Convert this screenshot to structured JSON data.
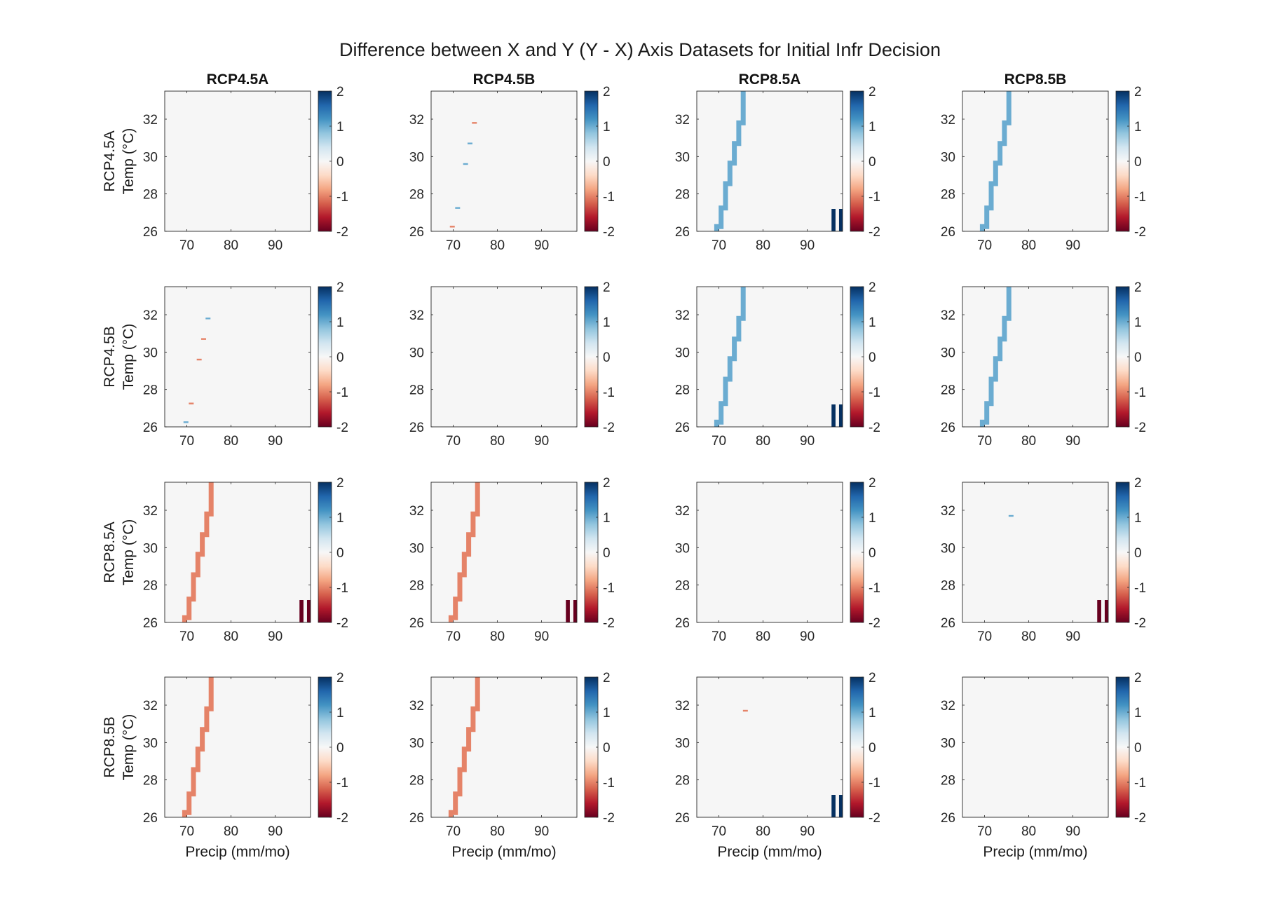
{
  "figure": {
    "title": "Difference between X and Y (Y - X) Axis Datasets for Initial Infr Decision",
    "columns": [
      "RCP4.5A",
      "RCP4.5B",
      "RCP8.5A",
      "RCP8.5B"
    ],
    "rows": [
      "RCP4.5A",
      "RCP4.5B",
      "RCP8.5A",
      "RCP8.5B"
    ],
    "ylabel": "Temp (°C)",
    "xlabel": "Precip (mm/mo)"
  },
  "chart_data": {
    "type": "heatmap",
    "xlim": [
      65,
      98
    ],
    "ylim": [
      26,
      33.5
    ],
    "xticks": [
      70,
      80,
      90
    ],
    "yticks": [
      26,
      28,
      30,
      32
    ],
    "clim": [
      -2,
      2
    ],
    "colorbar_ticks": [
      2,
      1,
      0,
      -1,
      -2
    ],
    "colormap": [
      "#67001f",
      "#b2182b",
      "#d6604d",
      "#f4a582",
      "#fddbc7",
      "#f7f7f7",
      "#d1e5f0",
      "#92c5de",
      "#4393c3",
      "#2166ac",
      "#053061"
    ],
    "background_color": "#f6f6f6",
    "staircase_path": [
      [
        69.5,
        26
      ],
      [
        69.5,
        26.25
      ],
      [
        70.5,
        26.25
      ],
      [
        70.5,
        27.25
      ],
      [
        71.5,
        27.25
      ],
      [
        71.5,
        28.55
      ],
      [
        72.5,
        28.55
      ],
      [
        72.5,
        29.65
      ],
      [
        73.5,
        29.65
      ],
      [
        73.5,
        30.7
      ],
      [
        74.5,
        30.7
      ],
      [
        74.5,
        31.8
      ],
      [
        75.5,
        31.8
      ],
      [
        75.5,
        33.5
      ]
    ],
    "subplots": [
      {
        "row": "RCP4.5A",
        "col": "RCP4.5A",
        "cells": []
      },
      {
        "row": "RCP4.5A",
        "col": "RCP4.5B",
        "cells": [
          {
            "x": 74.8,
            "y": 31.8,
            "value": -1
          },
          {
            "x": 73.8,
            "y": 30.7,
            "value": 1
          },
          {
            "x": 72.8,
            "y": 29.6,
            "value": 1
          },
          {
            "x": 71.0,
            "y": 27.25,
            "value": 1
          },
          {
            "x": 69.8,
            "y": 26.25,
            "value": -1
          }
        ]
      },
      {
        "row": "RCP4.5A",
        "col": "RCP8.5A",
        "staircase_value": 1,
        "bars_value": 2
      },
      {
        "row": "RCP4.5A",
        "col": "RCP8.5B",
        "staircase_value": 1
      },
      {
        "row": "RCP4.5B",
        "col": "RCP4.5A",
        "cells": [
          {
            "x": 74.8,
            "y": 31.8,
            "value": 1
          },
          {
            "x": 73.8,
            "y": 30.7,
            "value": -1
          },
          {
            "x": 72.8,
            "y": 29.6,
            "value": -1
          },
          {
            "x": 71.0,
            "y": 27.25,
            "value": -1
          },
          {
            "x": 69.8,
            "y": 26.25,
            "value": 1
          }
        ]
      },
      {
        "row": "RCP4.5B",
        "col": "RCP4.5B",
        "cells": []
      },
      {
        "row": "RCP4.5B",
        "col": "RCP8.5A",
        "staircase_value": 1,
        "bars_value": 2
      },
      {
        "row": "RCP4.5B",
        "col": "RCP8.5B",
        "staircase_value": 1
      },
      {
        "row": "RCP8.5A",
        "col": "RCP4.5A",
        "staircase_value": -1,
        "bars_value": -2
      },
      {
        "row": "RCP8.5A",
        "col": "RCP4.5B",
        "staircase_value": -1,
        "bars_value": -2
      },
      {
        "row": "RCP8.5A",
        "col": "RCP8.5A",
        "cells": []
      },
      {
        "row": "RCP8.5A",
        "col": "RCP8.5B",
        "cells": [
          {
            "x": 76.0,
            "y": 31.7,
            "value": 1
          }
        ],
        "bars_value": -2
      },
      {
        "row": "RCP8.5B",
        "col": "RCP4.5A",
        "staircase_value": -1
      },
      {
        "row": "RCP8.5B",
        "col": "RCP4.5B",
        "staircase_value": -1
      },
      {
        "row": "RCP8.5B",
        "col": "RCP8.5A",
        "cells": [
          {
            "x": 76.0,
            "y": 31.7,
            "value": -1
          }
        ],
        "bars_value": 2
      },
      {
        "row": "RCP8.5B",
        "col": "RCP8.5B",
        "cells": []
      }
    ],
    "bars": [
      {
        "x0": 95.5,
        "x1": 96.4
      },
      {
        "x0": 97.2,
        "x1": 98.0
      }
    ],
    "bars_ytop": 27.2
  }
}
